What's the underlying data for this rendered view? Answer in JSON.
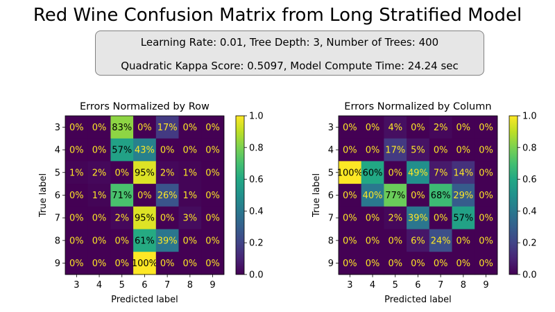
{
  "title": "Red Wine Confusion Matrix from Long Stratified Model",
  "info_box": {
    "line1": "Learning Rate: 0.01, Tree Depth: 3, Number of Trees: 400",
    "line2": "Quadratic Kappa Score: 0.5097,  Model Compute Time: 24.24 sec"
  },
  "colors": {
    "low_text": "#fde725",
    "high_text": "#000000",
    "colormap": "viridis"
  },
  "chart_data": [
    {
      "type": "heatmap",
      "title": "Errors Normalized by Row",
      "xlabel": "Predicted label",
      "ylabel": "True label",
      "x_categories": [
        "3",
        "4",
        "5",
        "6",
        "7",
        "8",
        "9"
      ],
      "y_categories": [
        "3",
        "4",
        "5",
        "6",
        "7",
        "8",
        "9"
      ],
      "values": [
        [
          0,
          0,
          0.83,
          0,
          0.17,
          0,
          0
        ],
        [
          0,
          0,
          0.57,
          0.43,
          0,
          0,
          0
        ],
        [
          0.01,
          0.02,
          0,
          0.95,
          0.02,
          0.01,
          0
        ],
        [
          0,
          0.01,
          0.71,
          0,
          0.26,
          0.01,
          0
        ],
        [
          0,
          0,
          0.02,
          0.95,
          0,
          0.03,
          0
        ],
        [
          0,
          0,
          0,
          0.61,
          0.39,
          0,
          0
        ],
        [
          0,
          0,
          0,
          1.0,
          0,
          0,
          0
        ]
      ],
      "labels": [
        [
          "0%",
          "0%",
          "83%",
          "0%",
          "17%",
          "0%",
          "0%"
        ],
        [
          "0%",
          "0%",
          "57%",
          "43%",
          "0%",
          "0%",
          "0%"
        ],
        [
          "1%",
          "2%",
          "0%",
          "95%",
          "2%",
          "1%",
          "0%"
        ],
        [
          "0%",
          "1%",
          "71%",
          "0%",
          "26%",
          "1%",
          "0%"
        ],
        [
          "0%",
          "0%",
          "2%",
          "95%",
          "0%",
          "3%",
          "0%"
        ],
        [
          "0%",
          "0%",
          "0%",
          "61%",
          "39%",
          "0%",
          "0%"
        ],
        [
          "0%",
          "0%",
          "0%",
          "100%",
          "0%",
          "0%",
          "0%"
        ]
      ],
      "colorbar": {
        "min": 0.0,
        "max": 1.0,
        "ticks": [
          "0.0",
          "0.2",
          "0.4",
          "0.6",
          "0.8",
          "1.0"
        ]
      }
    },
    {
      "type": "heatmap",
      "title": "Errors Normalized by Column",
      "xlabel": "Predicted label",
      "ylabel": "True label",
      "x_categories": [
        "3",
        "4",
        "5",
        "6",
        "7",
        "8",
        "9"
      ],
      "y_categories": [
        "3",
        "4",
        "5",
        "6",
        "7",
        "8",
        "9"
      ],
      "values": [
        [
          0,
          0,
          0.04,
          0,
          0.02,
          0,
          0
        ],
        [
          0,
          0,
          0.17,
          0.05,
          0,
          0,
          0
        ],
        [
          1.0,
          0.6,
          0,
          0.49,
          0.07,
          0.14,
          0
        ],
        [
          0,
          0.4,
          0.77,
          0,
          0.68,
          0.29,
          0
        ],
        [
          0,
          0,
          0.02,
          0.39,
          0,
          0.57,
          0
        ],
        [
          0,
          0,
          0,
          0.06,
          0.24,
          0,
          0
        ],
        [
          0,
          0,
          0,
          0,
          0,
          0,
          0
        ]
      ],
      "labels": [
        [
          "0%",
          "0%",
          "4%",
          "0%",
          "2%",
          "0%",
          "0%"
        ],
        [
          "0%",
          "0%",
          "17%",
          "5%",
          "0%",
          "0%",
          "0%"
        ],
        [
          "100%",
          "60%",
          "0%",
          "49%",
          "7%",
          "14%",
          "0%"
        ],
        [
          "0%",
          "40%",
          "77%",
          "0%",
          "68%",
          "29%",
          "0%"
        ],
        [
          "0%",
          "0%",
          "2%",
          "39%",
          "0%",
          "57%",
          "0%"
        ],
        [
          "0%",
          "0%",
          "0%",
          "6%",
          "24%",
          "0%",
          "0%"
        ],
        [
          "0%",
          "0%",
          "0%",
          "0%",
          "0%",
          "0%",
          "0%"
        ]
      ],
      "colorbar": {
        "min": 0.0,
        "max": 1.0,
        "ticks": [
          "0.0",
          "0.2",
          "0.4",
          "0.6",
          "0.8",
          "1.0"
        ]
      }
    }
  ]
}
